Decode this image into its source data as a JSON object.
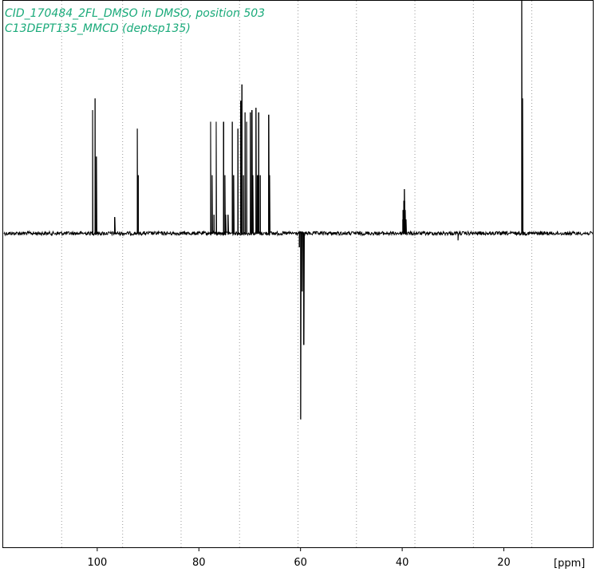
{
  "colors": {
    "title": "#1aaa7a",
    "spectrum": "#000000",
    "grid": "#999999",
    "frame": "#000000",
    "background": "#ffffff"
  },
  "chart_data": {
    "type": "line",
    "title_lines": [
      "CID_170484_2FL_DMSO in DMSO, position 503",
      "C13DEPT135_MMCD (deptsp135)"
    ],
    "xlabel": "[ppm]",
    "x_reversed": true,
    "xlim": [
      118.5,
      2.5
    ],
    "ylim": [
      -1.35,
      1.0
    ],
    "xticks": [
      100,
      80,
      60,
      40,
      20
    ],
    "tick_labels": [
      "100",
      "80",
      "60",
      "40",
      "20"
    ],
    "grid": "vertical dotted",
    "grid_x": [
      107,
      95,
      83.5,
      72,
      60.5,
      49,
      37.5,
      26,
      14.5
    ],
    "baseline": 0,
    "noise_amplitude": 0.008,
    "peaks": [
      {
        "ppm": 100.9,
        "intensity": 0.53
      },
      {
        "ppm": 100.4,
        "intensity": 0.58
      },
      {
        "ppm": 100.2,
        "intensity": 0.33
      },
      {
        "ppm": 96.6,
        "intensity": 0.07
      },
      {
        "ppm": 92.1,
        "intensity": 0.45
      },
      {
        "ppm": 91.9,
        "intensity": 0.25
      },
      {
        "ppm": 77.7,
        "intensity": 0.48
      },
      {
        "ppm": 77.4,
        "intensity": 0.25
      },
      {
        "ppm": 77.0,
        "intensity": 0.08
      },
      {
        "ppm": 76.6,
        "intensity": 0.48
      },
      {
        "ppm": 75.1,
        "intensity": 0.48
      },
      {
        "ppm": 74.9,
        "intensity": 0.25
      },
      {
        "ppm": 74.7,
        "intensity": 0.08
      },
      {
        "ppm": 74.3,
        "intensity": 0.08
      },
      {
        "ppm": 73.4,
        "intensity": 0.48
      },
      {
        "ppm": 73.2,
        "intensity": 0.25
      },
      {
        "ppm": 72.3,
        "intensity": 0.45
      },
      {
        "ppm": 71.8,
        "intensity": 0.57
      },
      {
        "ppm": 71.5,
        "intensity": 0.64
      },
      {
        "ppm": 71.2,
        "intensity": 0.25
      },
      {
        "ppm": 70.9,
        "intensity": 0.52
      },
      {
        "ppm": 70.6,
        "intensity": 0.48
      },
      {
        "ppm": 69.9,
        "intensity": 0.52
      },
      {
        "ppm": 69.6,
        "intensity": 0.53
      },
      {
        "ppm": 69.4,
        "intensity": 0.25
      },
      {
        "ppm": 68.8,
        "intensity": 0.54
      },
      {
        "ppm": 68.5,
        "intensity": 0.25
      },
      {
        "ppm": 68.2,
        "intensity": 0.52
      },
      {
        "ppm": 67.9,
        "intensity": 0.25
      },
      {
        "ppm": 66.3,
        "intensity": 0.51
      },
      {
        "ppm": 66.1,
        "intensity": 0.25
      },
      {
        "ppm": 60.2,
        "intensity": -0.06
      },
      {
        "ppm": 60.0,
        "intensity": -0.8
      },
      {
        "ppm": 59.7,
        "intensity": -0.25
      },
      {
        "ppm": 59.4,
        "intensity": -0.48
      },
      {
        "ppm": 39.9,
        "intensity": 0.06
      },
      {
        "ppm": 39.8,
        "intensity": 0.1
      },
      {
        "ppm": 39.7,
        "intensity": 0.14
      },
      {
        "ppm": 39.6,
        "intensity": 0.19
      },
      {
        "ppm": 39.5,
        "intensity": 0.14
      },
      {
        "ppm": 39.4,
        "intensity": 0.1
      },
      {
        "ppm": 39.3,
        "intensity": 0.06
      },
      {
        "ppm": 29.0,
        "intensity": -0.03
      },
      {
        "ppm": 16.5,
        "intensity": 1.13
      },
      {
        "ppm": 16.3,
        "intensity": 0.58
      }
    ]
  }
}
